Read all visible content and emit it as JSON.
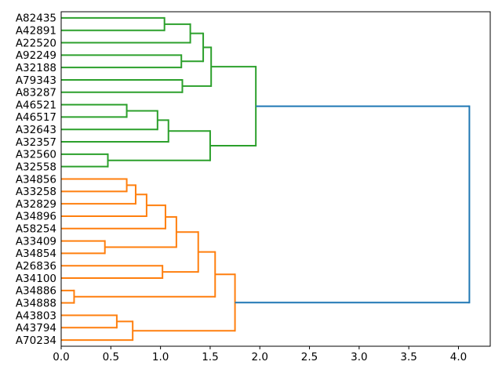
{
  "figure": {
    "background": "#ffffff",
    "title": ""
  },
  "chart_data": {
    "type": "dendrogram",
    "orientation": "leaves-left-root-right",
    "title": "",
    "xlabel": "",
    "ylabel": "",
    "grid": false,
    "legend": null,
    "xlim": [
      0,
      4.32
    ],
    "x_tick_values": [
      0.0,
      0.5,
      1.0,
      1.5,
      2.0,
      2.5,
      3.0,
      3.5,
      4.0
    ],
    "x_tick_labels": [
      "0.0",
      "0.5",
      "1.0",
      "1.5",
      "2.0",
      "2.5",
      "3.0",
      "3.5",
      "4.0"
    ],
    "leaves": [
      "A82435",
      "A42891",
      "A22520",
      "A92249",
      "A32188",
      "A79343",
      "A83287",
      "A46521",
      "A46517",
      "A32643",
      "A32357",
      "A32560",
      "A32558",
      "A34856",
      "A33258",
      "A32829",
      "A34896",
      "A58254",
      "A33409",
      "A34854",
      "A26836",
      "A34100",
      "A34886",
      "A34888",
      "A43803",
      "A43794",
      "A70234"
    ],
    "merges_note": "a and b reference nodes: 0-26 are leaves top-to-bottom; merge at array index i creates node 27+i; d is the merge distance on the x axis",
    "merges": [
      {
        "a": 0,
        "b": 1,
        "d": 1.04,
        "c": "green"
      },
      {
        "a": 27,
        "b": 2,
        "d": 1.3,
        "c": "green"
      },
      {
        "a": 3,
        "b": 4,
        "d": 1.21,
        "c": "green"
      },
      {
        "a": 28,
        "b": 29,
        "d": 1.43,
        "c": "green"
      },
      {
        "a": 5,
        "b": 6,
        "d": 1.22,
        "c": "green"
      },
      {
        "a": 30,
        "b": 31,
        "d": 1.51,
        "c": "green"
      },
      {
        "a": 7,
        "b": 8,
        "d": 0.66,
        "c": "green"
      },
      {
        "a": 33,
        "b": 9,
        "d": 0.97,
        "c": "green"
      },
      {
        "a": 34,
        "b": 10,
        "d": 1.08,
        "c": "green"
      },
      {
        "a": 11,
        "b": 12,
        "d": 0.47,
        "c": "green"
      },
      {
        "a": 35,
        "b": 36,
        "d": 1.5,
        "c": "green"
      },
      {
        "a": 32,
        "b": 37,
        "d": 1.96,
        "c": "green"
      },
      {
        "a": 13,
        "b": 14,
        "d": 0.66,
        "c": "orange"
      },
      {
        "a": 39,
        "b": 15,
        "d": 0.75,
        "c": "orange"
      },
      {
        "a": 40,
        "b": 16,
        "d": 0.86,
        "c": "orange"
      },
      {
        "a": 41,
        "b": 17,
        "d": 1.05,
        "c": "orange"
      },
      {
        "a": 18,
        "b": 19,
        "d": 0.44,
        "c": "orange"
      },
      {
        "a": 42,
        "b": 43,
        "d": 1.16,
        "c": "orange"
      },
      {
        "a": 20,
        "b": 21,
        "d": 1.02,
        "c": "orange"
      },
      {
        "a": 44,
        "b": 45,
        "d": 1.38,
        "c": "orange"
      },
      {
        "a": 22,
        "b": 23,
        "d": 0.13,
        "c": "orange"
      },
      {
        "a": 46,
        "b": 47,
        "d": 1.55,
        "c": "orange"
      },
      {
        "a": 24,
        "b": 25,
        "d": 0.56,
        "c": "orange"
      },
      {
        "a": 49,
        "b": 26,
        "d": 0.72,
        "c": "orange"
      },
      {
        "a": 48,
        "b": 50,
        "d": 1.75,
        "c": "orange"
      },
      {
        "a": 38,
        "b": 51,
        "d": 4.11,
        "c": "blue"
      }
    ],
    "colors": {
      "green": "#2ca02c",
      "orange": "#ff7f0e",
      "blue": "#1f77b4",
      "axis": "#000000",
      "text": "#000000"
    }
  }
}
